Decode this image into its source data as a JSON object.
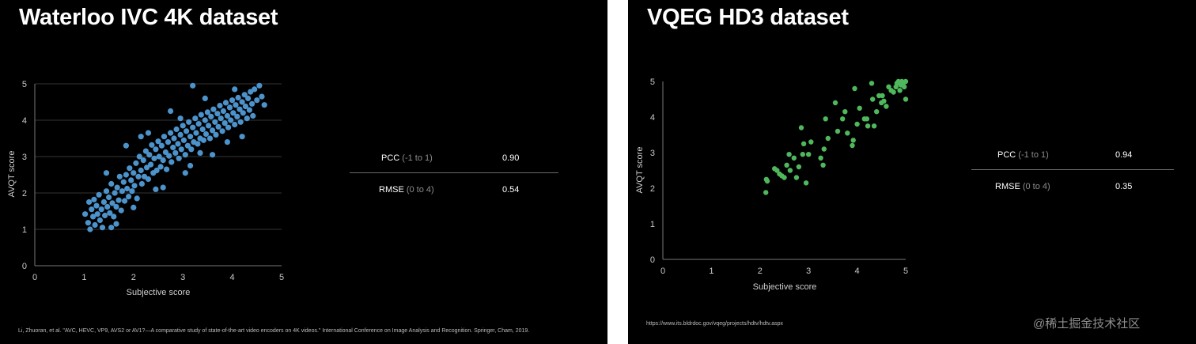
{
  "left": {
    "title": "Waterloo IVC 4K dataset",
    "stats": {
      "pcc_label": "PCC",
      "pcc_range": "(-1 to 1)",
      "pcc_value": "0.90",
      "rmse_label": "RMSE",
      "rmse_range": "(0 to 4)",
      "rmse_value": "0.54"
    },
    "footer": "Li, Zhuoran, et al. \"AVC, HEVC, VP9, AVS2 or AV1?—A comparative study of state-of-the-art video encoders on 4K videos.\" International Conference on Image Analysis and Recognition. Springer, Cham, 2019.",
    "chart_data": {
      "type": "scatter",
      "xlabel": "Subjective score",
      "ylabel": "AVQT score",
      "xlim": [
        0,
        5
      ],
      "ylim": [
        0,
        5
      ],
      "xticks": [
        0,
        1,
        2,
        3,
        4,
        5
      ],
      "yticks": [
        0,
        1,
        2,
        3,
        4,
        5
      ],
      "grid": true,
      "color": "#4d93cb",
      "points": [
        [
          1.02,
          1.42
        ],
        [
          1.08,
          1.18
        ],
        [
          1.12,
          1.0
        ],
        [
          1.15,
          1.55
        ],
        [
          1.18,
          1.35
        ],
        [
          1.2,
          1.82
        ],
        [
          1.22,
          1.12
        ],
        [
          1.25,
          1.65
        ],
        [
          1.27,
          1.42
        ],
        [
          1.3,
          1.95
        ],
        [
          1.32,
          1.25
        ],
        [
          1.35,
          1.55
        ],
        [
          1.37,
          1.05
        ],
        [
          1.4,
          1.75
        ],
        [
          1.42,
          1.38
        ],
        [
          1.45,
          2.05
        ],
        [
          1.47,
          1.62
        ],
        [
          1.5,
          1.88
        ],
        [
          1.52,
          1.45
        ],
        [
          1.55,
          2.25
        ],
        [
          1.57,
          1.72
        ],
        [
          1.6,
          1.35
        ],
        [
          1.62,
          2.0
        ],
        [
          1.65,
          1.62
        ],
        [
          1.67,
          2.15
        ],
        [
          1.7,
          1.8
        ],
        [
          1.72,
          2.45
        ],
        [
          1.75,
          1.52
        ],
        [
          1.77,
          2.05
        ],
        [
          1.8,
          2.3
        ],
        [
          1.82,
          1.78
        ],
        [
          1.85,
          2.5
        ],
        [
          1.87,
          2.12
        ],
        [
          1.9,
          1.9
        ],
        [
          1.92,
          2.68
        ],
        [
          1.95,
          2.35
        ],
        [
          1.97,
          2.05
        ],
        [
          2.0,
          2.55
        ],
        [
          2.02,
          2.2
        ],
        [
          2.05,
          2.82
        ],
        [
          2.07,
          1.85
        ],
        [
          2.1,
          2.45
        ],
        [
          2.12,
          3.0
        ],
        [
          2.15,
          2.62
        ],
        [
          2.17,
          2.25
        ],
        [
          2.2,
          2.9
        ],
        [
          2.22,
          2.45
        ],
        [
          2.25,
          3.15
        ],
        [
          2.27,
          2.7
        ],
        [
          2.3,
          2.38
        ],
        [
          2.32,
          3.05
        ],
        [
          2.35,
          2.78
        ],
        [
          2.37,
          3.32
        ],
        [
          2.4,
          2.55
        ],
        [
          2.42,
          2.95
        ],
        [
          2.45,
          3.2
        ],
        [
          2.47,
          2.62
        ],
        [
          2.5,
          3.42
        ],
        [
          2.52,
          3.0
        ],
        [
          2.55,
          2.72
        ],
        [
          2.57,
          3.3
        ],
        [
          2.6,
          2.9
        ],
        [
          2.62,
          3.55
        ],
        [
          2.65,
          3.12
        ],
        [
          2.67,
          2.65
        ],
        [
          2.7,
          3.4
        ],
        [
          2.72,
          3.02
        ],
        [
          2.75,
          3.65
        ],
        [
          2.77,
          2.85
        ],
        [
          2.8,
          3.25
        ],
        [
          2.82,
          3.5
        ],
        [
          2.85,
          3.1
        ],
        [
          2.87,
          3.75
        ],
        [
          2.9,
          3.35
        ],
        [
          2.92,
          2.95
        ],
        [
          2.95,
          3.6
        ],
        [
          2.97,
          3.2
        ],
        [
          3.0,
          3.85
        ],
        [
          3.02,
          3.45
        ],
        [
          3.05,
          3.05
        ],
        [
          3.07,
          3.7
        ],
        [
          3.1,
          3.3
        ],
        [
          3.12,
          3.95
        ],
        [
          3.15,
          3.55
        ],
        [
          3.17,
          3.2
        ],
        [
          3.2,
          3.8
        ],
        [
          3.22,
          3.4
        ],
        [
          3.25,
          4.05
        ],
        [
          3.27,
          3.65
        ],
        [
          3.3,
          3.35
        ],
        [
          3.32,
          3.9
        ],
        [
          3.35,
          3.5
        ],
        [
          3.37,
          4.15
        ],
        [
          3.4,
          3.75
        ],
        [
          3.42,
          3.45
        ],
        [
          3.45,
          4.0
        ],
        [
          3.47,
          3.62
        ],
        [
          3.5,
          4.22
        ],
        [
          3.52,
          3.85
        ],
        [
          3.55,
          3.5
        ],
        [
          3.57,
          4.1
        ],
        [
          3.6,
          3.72
        ],
        [
          3.62,
          4.3
        ],
        [
          3.65,
          3.95
        ],
        [
          3.67,
          3.6
        ],
        [
          3.7,
          4.18
        ],
        [
          3.72,
          3.82
        ],
        [
          3.75,
          4.4
        ],
        [
          3.77,
          4.05
        ],
        [
          3.8,
          3.7
        ],
        [
          3.82,
          4.25
        ],
        [
          3.85,
          3.92
        ],
        [
          3.87,
          4.48
        ],
        [
          3.9,
          4.12
        ],
        [
          3.92,
          3.8
        ],
        [
          3.95,
          4.35
        ],
        [
          3.97,
          4.0
        ],
        [
          4.0,
          4.55
        ],
        [
          4.02,
          4.2
        ],
        [
          4.05,
          3.88
        ],
        [
          4.07,
          4.42
        ],
        [
          4.1,
          4.1
        ],
        [
          4.12,
          4.62
        ],
        [
          4.15,
          4.3
        ],
        [
          4.17,
          3.95
        ],
        [
          4.2,
          4.5
        ],
        [
          4.22,
          4.2
        ],
        [
          4.25,
          4.7
        ],
        [
          4.27,
          4.38
        ],
        [
          4.3,
          4.05
        ],
        [
          4.32,
          4.6
        ],
        [
          4.35,
          4.28
        ],
        [
          4.37,
          4.78
        ],
        [
          4.4,
          4.45
        ],
        [
          4.42,
          4.12
        ],
        [
          4.45,
          4.85
        ],
        [
          4.5,
          4.55
        ],
        [
          4.55,
          4.95
        ],
        [
          4.6,
          4.65
        ],
        [
          4.65,
          4.42
        ],
        [
          3.2,
          4.95
        ],
        [
          2.15,
          3.55
        ],
        [
          1.85,
          3.3
        ],
        [
          2.6,
          2.15
        ],
        [
          3.05,
          2.55
        ],
        [
          3.6,
          3.05
        ],
        [
          4.2,
          3.55
        ],
        [
          1.45,
          2.55
        ],
        [
          2.3,
          3.65
        ],
        [
          2.95,
          4.05
        ],
        [
          3.45,
          4.6
        ],
        [
          1.65,
          1.15
        ],
        [
          2.0,
          1.6
        ],
        [
          2.45,
          2.1
        ],
        [
          3.15,
          2.75
        ],
        [
          3.9,
          3.4
        ],
        [
          1.1,
          1.75
        ],
        [
          2.75,
          4.25
        ],
        [
          3.35,
          3.1
        ],
        [
          4.05,
          4.85
        ],
        [
          1.55,
          1.05
        ]
      ]
    }
  },
  "right": {
    "title": "VQEG HD3 dataset",
    "stats": {
      "pcc_label": "PCC",
      "pcc_range": "(-1 to 1)",
      "pcc_value": "0.94",
      "rmse_label": "RMSE",
      "rmse_range": "(0 to 4)",
      "rmse_value": "0.35"
    },
    "footer": "https://www.its.bldrdoc.gov/vqeg/projects/hdtv/hdtv.aspx",
    "watermark": "@稀土掘金技术社区",
    "chart_data": {
      "type": "scatter",
      "xlabel": "Subjective score",
      "ylabel": "AVQT score",
      "xlim": [
        0,
        5
      ],
      "ylim": [
        0,
        5
      ],
      "xticks": [
        0,
        1,
        2,
        3,
        4,
        5
      ],
      "yticks": [
        0,
        1,
        2,
        3,
        4,
        5
      ],
      "grid": false,
      "color": "#4fb85c",
      "points": [
        [
          2.12,
          1.88
        ],
        [
          2.13,
          2.25
        ],
        [
          2.15,
          2.2
        ],
        [
          2.3,
          2.55
        ],
        [
          2.35,
          2.5
        ],
        [
          2.4,
          2.4
        ],
        [
          2.45,
          2.35
        ],
        [
          2.5,
          2.3
        ],
        [
          2.55,
          2.65
        ],
        [
          2.6,
          2.95
        ],
        [
          2.62,
          2.5
        ],
        [
          2.7,
          2.85
        ],
        [
          2.75,
          2.3
        ],
        [
          2.8,
          2.6
        ],
        [
          2.85,
          3.7
        ],
        [
          2.88,
          2.95
        ],
        [
          2.9,
          3.25
        ],
        [
          2.95,
          2.15
        ],
        [
          3.0,
          2.95
        ],
        [
          3.05,
          3.3
        ],
        [
          3.25,
          2.85
        ],
        [
          3.3,
          2.65
        ],
        [
          3.32,
          3.1
        ],
        [
          3.35,
          3.95
        ],
        [
          3.4,
          3.4
        ],
        [
          3.55,
          4.4
        ],
        [
          3.6,
          3.6
        ],
        [
          3.7,
          3.95
        ],
        [
          3.75,
          4.15
        ],
        [
          3.8,
          3.55
        ],
        [
          3.9,
          3.2
        ],
        [
          3.92,
          3.35
        ],
        [
          3.95,
          4.8
        ],
        [
          4.0,
          3.8
        ],
        [
          4.05,
          4.25
        ],
        [
          4.15,
          3.95
        ],
        [
          4.2,
          3.95
        ],
        [
          4.22,
          3.75
        ],
        [
          4.3,
          4.95
        ],
        [
          4.32,
          4.5
        ],
        [
          4.35,
          3.75
        ],
        [
          4.4,
          4.15
        ],
        [
          4.45,
          4.6
        ],
        [
          4.5,
          4.4
        ],
        [
          4.52,
          4.6
        ],
        [
          4.55,
          4.45
        ],
        [
          4.6,
          4.3
        ],
        [
          4.65,
          4.85
        ],
        [
          4.7,
          4.75
        ],
        [
          4.75,
          4.7
        ],
        [
          4.8,
          4.85
        ],
        [
          4.82,
          4.95
        ],
        [
          4.85,
          5.0
        ],
        [
          4.88,
          4.75
        ],
        [
          4.9,
          4.9
        ],
        [
          4.92,
          5.0
        ],
        [
          4.95,
          4.95
        ],
        [
          4.97,
          4.85
        ],
        [
          5.0,
          5.0
        ],
        [
          5.0,
          4.5
        ]
      ]
    }
  }
}
